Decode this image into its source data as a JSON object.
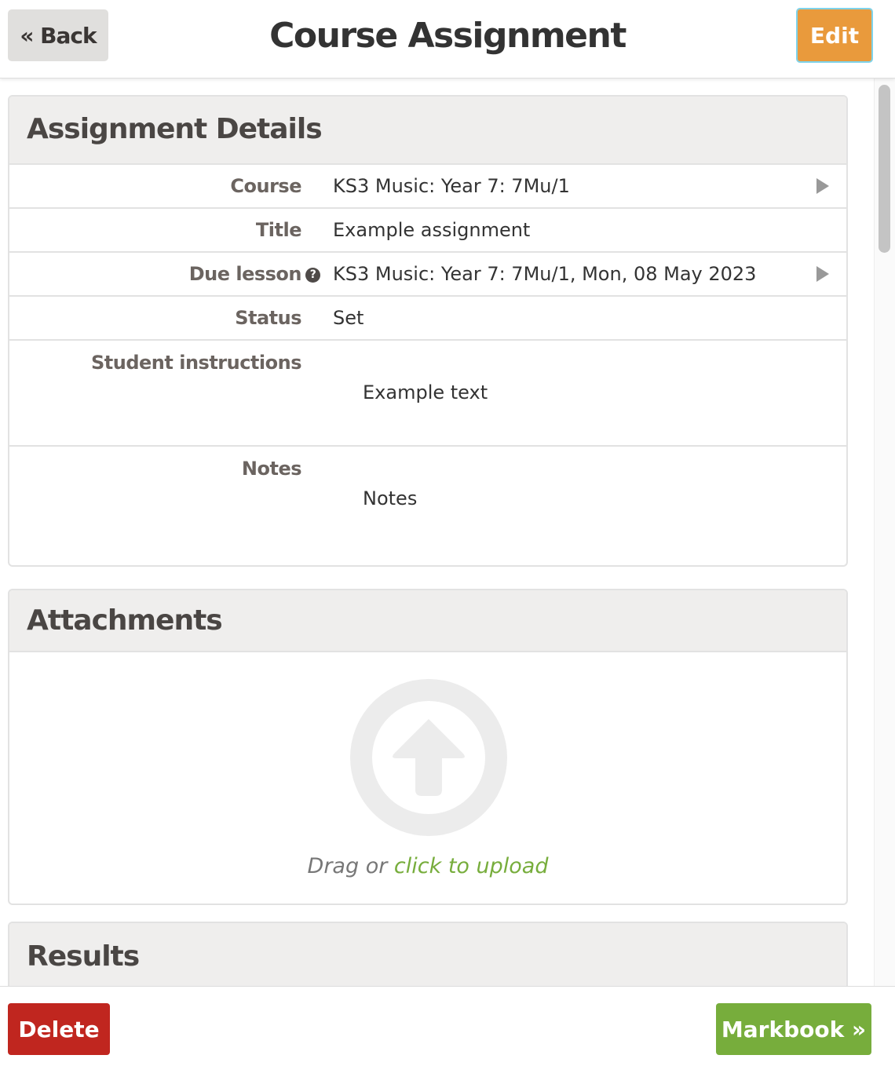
{
  "header": {
    "back_label": "« Back",
    "title": "Course Assignment",
    "edit_label": "Edit"
  },
  "details": {
    "heading": "Assignment Details",
    "course_label": "Course",
    "course_value": "KS3 Music: Year 7: 7Mu/1",
    "title_label": "Title",
    "title_value": "Example assignment",
    "due_label": "Due lesson",
    "due_value": "KS3 Music: Year 7: 7Mu/1, Mon, 08 May 2023",
    "status_label": "Status",
    "status_value": "Set",
    "instructions_label": "Student instructions",
    "instructions_value": "Example text",
    "notes_label": "Notes",
    "notes_value": "Notes"
  },
  "attachments": {
    "heading": "Attachments",
    "drag_text": "Drag or ",
    "upload_link": "click to upload",
    "link_color": "#77ad3c"
  },
  "results": {
    "heading": "Results"
  },
  "footer": {
    "delete_label": "Delete",
    "markbook_label": "Markbook »"
  },
  "colors": {
    "edit": "#e99a3c",
    "delete": "#c0261f",
    "markbook": "#77ad3c"
  }
}
